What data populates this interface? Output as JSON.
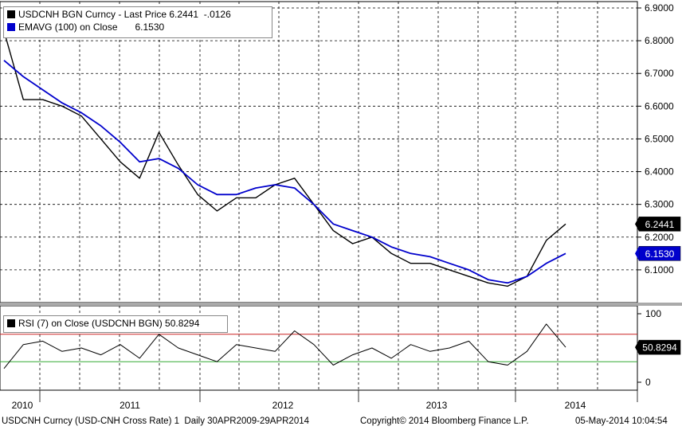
{
  "legend_main": {
    "row1_label": "USDCNH BGN Curncy - Last Price 6.2441  -.0126",
    "row2_label": "EMAVG (100) on Close",
    "row2_value": "6.1530",
    "row1_color": "#000000",
    "row2_color": "#0000cc"
  },
  "legend_rsi": {
    "label": "RSI (7) on Close (USDCNH BGN) 50.8294"
  },
  "badges": {
    "last_price": "6.2441",
    "ema": "6.1530",
    "rsi": "50.8294"
  },
  "footer": {
    "left": "USDCNH Curncy (USD-CNH Cross Rate) 1  Daily 30APR2009-29APR2014",
    "center": "Copyright© 2014 Bloomberg Finance L.P.",
    "right": "05-May-2014 10:04:54"
  },
  "chart_data": [
    {
      "type": "line",
      "xlabel": "",
      "ylabel": "",
      "x_tick_labels": [
        "2010",
        "2011",
        "2012",
        "2013",
        "2014"
      ],
      "y_tick_labels": [
        "6.9000",
        "6.8000",
        "6.7000",
        "6.6000",
        "6.5000",
        "6.4000",
        "6.3000",
        "6.2000",
        "6.1000"
      ],
      "ylim": [
        6.0,
        6.9
      ],
      "x": [
        "2009-09",
        "2009-11",
        "2010-01",
        "2010-03",
        "2010-05",
        "2010-07",
        "2010-09",
        "2010-11",
        "2011-01",
        "2011-03",
        "2011-05",
        "2011-07",
        "2011-09",
        "2011-11",
        "2012-01",
        "2012-03",
        "2012-05",
        "2012-07",
        "2012-09",
        "2012-11",
        "2013-01",
        "2013-03",
        "2013-05",
        "2013-07",
        "2013-09",
        "2013-11",
        "2014-01",
        "2014-02",
        "2014-03",
        "2014-04"
      ],
      "series": [
        {
          "name": "USDCNH BGN Curncy - Last Price",
          "color": "#000000",
          "values": [
            6.83,
            6.62,
            6.62,
            6.6,
            6.57,
            6.5,
            6.43,
            6.38,
            6.52,
            6.42,
            6.33,
            6.28,
            6.32,
            6.32,
            6.36,
            6.38,
            6.3,
            6.22,
            6.18,
            6.2,
            6.15,
            6.12,
            6.12,
            6.1,
            6.08,
            6.06,
            6.05,
            6.08,
            6.19,
            6.24
          ]
        },
        {
          "name": "EMAVG (100) on Close",
          "color": "#0000cc",
          "values": [
            6.74,
            6.69,
            6.65,
            6.61,
            6.58,
            6.54,
            6.49,
            6.43,
            6.44,
            6.41,
            6.36,
            6.33,
            6.33,
            6.35,
            6.36,
            6.35,
            6.3,
            6.24,
            6.22,
            6.2,
            6.17,
            6.15,
            6.14,
            6.12,
            6.1,
            6.07,
            6.06,
            6.08,
            6.12,
            6.15
          ]
        }
      ]
    },
    {
      "type": "line",
      "xlabel": "",
      "ylabel": "",
      "y_tick_labels": [
        "100",
        "50",
        "0"
      ],
      "ylim": [
        0,
        100
      ],
      "reference_lines": [
        {
          "value": 70,
          "color": "#cc2222"
        },
        {
          "value": 30,
          "color": "#33aa33"
        }
      ],
      "x": [
        "2009-09",
        "2009-11",
        "2010-01",
        "2010-03",
        "2010-05",
        "2010-07",
        "2010-09",
        "2010-11",
        "2011-01",
        "2011-03",
        "2011-05",
        "2011-07",
        "2011-09",
        "2011-11",
        "2012-01",
        "2012-03",
        "2012-05",
        "2012-07",
        "2012-09",
        "2012-11",
        "2013-01",
        "2013-03",
        "2013-05",
        "2013-07",
        "2013-09",
        "2013-11",
        "2014-01",
        "2014-02",
        "2014-03",
        "2014-04"
      ],
      "series": [
        {
          "name": "RSI (7) on Close (USDCNH BGN)",
          "color": "#000000",
          "values": [
            20,
            55,
            60,
            45,
            50,
            40,
            55,
            35,
            70,
            50,
            40,
            30,
            55,
            50,
            45,
            75,
            55,
            25,
            40,
            50,
            35,
            55,
            45,
            50,
            60,
            30,
            25,
            45,
            85,
            51
          ]
        }
      ]
    }
  ]
}
